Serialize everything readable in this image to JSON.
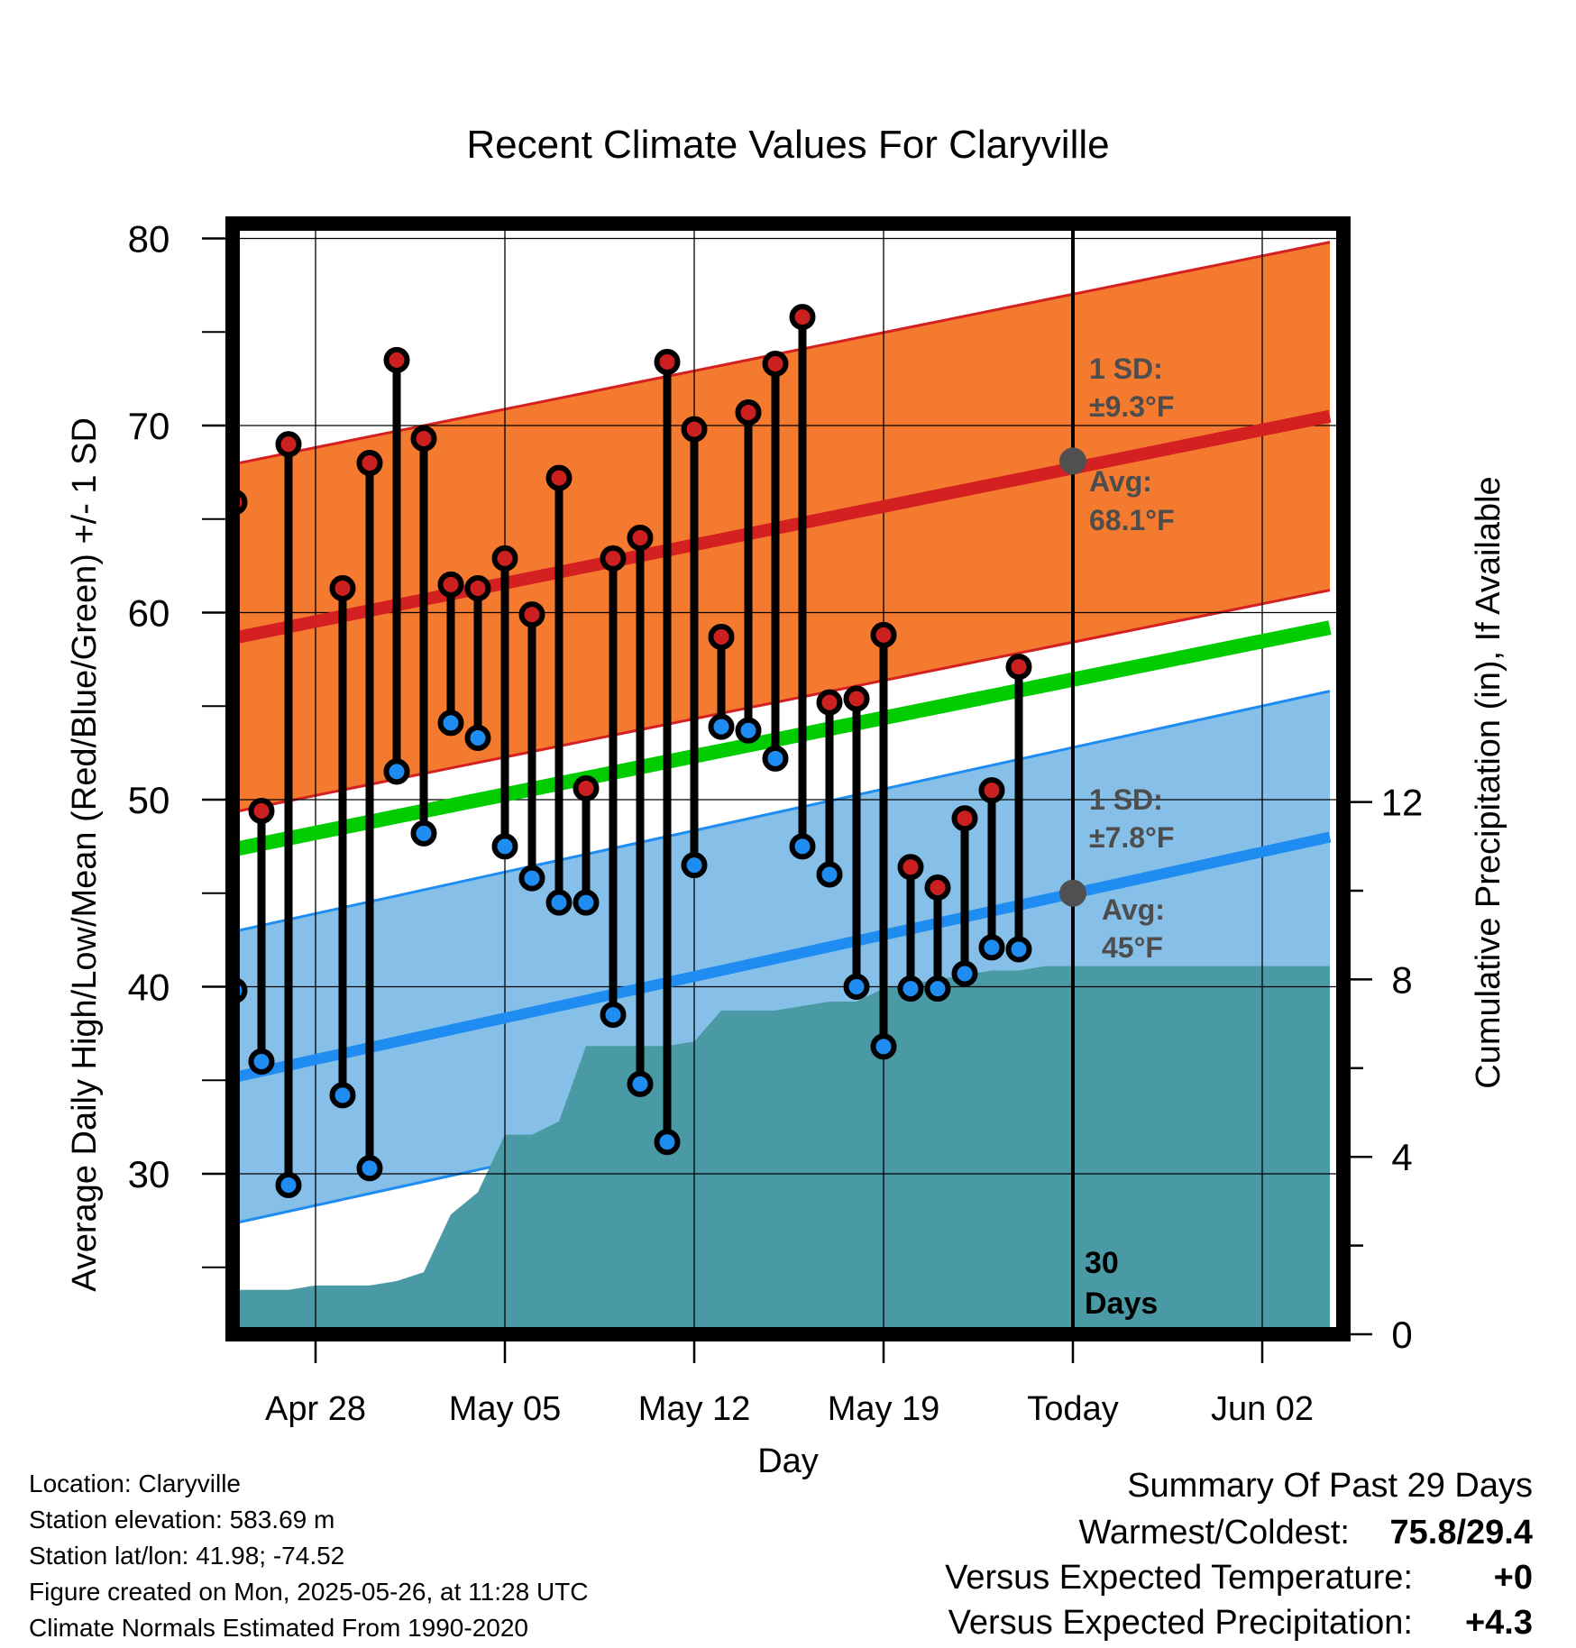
{
  "chart_data": {
    "type": "line",
    "title": "Recent Climate Values For Claryville",
    "xlabel": "Day",
    "ylabel_left": "Average Daily High/Low/Mean (Red/Blue/Green) +/- 1 SD",
    "ylabel_right": "Cumulative Precipitation (in), If Available",
    "ylim_left": [
      22,
      83
    ],
    "ylim_right": [
      0,
      30
    ],
    "xlim": [
      -2.5,
      38.5
    ],
    "y_ticks_left": [
      30,
      40,
      50,
      60,
      70,
      80
    ],
    "y_ticks_right": [
      0,
      4,
      8,
      12
    ],
    "x_ticks": [
      {
        "day": 1,
        "label": "Apr 28"
      },
      {
        "day": 8,
        "label": "May 05"
      },
      {
        "day": 15,
        "label": "May 12"
      },
      {
        "day": 22,
        "label": "May 19"
      },
      {
        "day": 29,
        "label": "Today"
      },
      {
        "day": 36,
        "label": "Jun 02"
      }
    ],
    "today_day": 29,
    "grid": true,
    "colors": {
      "high_band": "#f47a30",
      "high_line": "#d42020",
      "low_band": "#86c0e8",
      "low_line": "#1e8cf0",
      "mean_line": "#00cc00",
      "precip": "#4a9aa5",
      "high_dot": "#cc2020",
      "low_dot": "#1e8cf0",
      "marker": "#505050",
      "warm_text": "#d42020",
      "wet_text": "#00bb00"
    },
    "normal_high": {
      "start": 58.5,
      "end": 70.5,
      "sd": 9.3,
      "avg_today": 68.1
    },
    "normal_low": {
      "start": 35.0,
      "end": 48.0,
      "sd": 7.8,
      "avg_today": 45
    },
    "normal_mean": {
      "start": 47.2,
      "end": 59.2
    },
    "series": [
      {
        "name": "High",
        "days": [
          -2,
          -1,
          0,
          1,
          2,
          3,
          4,
          5,
          6,
          7,
          8,
          9,
          10,
          11,
          12,
          13,
          14,
          15,
          16,
          17,
          18,
          19,
          20,
          21,
          22,
          23,
          24,
          25,
          26,
          27,
          28
        ],
        "values": [
          65.9,
          49.4,
          69.0,
          null,
          61.3,
          68.0,
          73.5,
          69.3,
          61.5,
          61.3,
          62.9,
          59.9,
          67.2,
          50.6,
          62.9,
          64.0,
          73.4,
          69.8,
          58.7,
          70.7,
          73.3,
          75.8,
          55.2,
          55.4,
          58.8,
          46.4,
          45.3,
          49.0,
          50.5,
          57.1,
          null
        ]
      },
      {
        "name": "Low",
        "days": [
          -2,
          -1,
          0,
          1,
          2,
          3,
          4,
          5,
          6,
          7,
          8,
          9,
          10,
          11,
          12,
          13,
          14,
          15,
          16,
          17,
          18,
          19,
          20,
          21,
          22,
          23,
          24,
          25,
          26,
          27,
          28
        ],
        "values": [
          39.8,
          36.0,
          29.4,
          null,
          34.2,
          30.3,
          51.5,
          48.2,
          54.1,
          53.3,
          47.5,
          45.8,
          44.5,
          44.5,
          38.5,
          34.8,
          31.7,
          46.5,
          53.9,
          53.7,
          52.2,
          47.5,
          46.0,
          40.0,
          36.8,
          39.9,
          39.9,
          40.7,
          42.1,
          42.0,
          null
        ]
      },
      {
        "name": "Cumulative Precipitation",
        "days": [
          -2.5,
          -2,
          -1,
          0,
          1,
          2,
          3,
          4,
          5,
          6,
          7,
          8,
          9,
          10,
          11,
          12,
          13,
          14,
          15,
          16,
          17,
          18,
          19,
          20,
          21,
          22,
          23,
          24,
          25,
          26,
          27,
          28,
          29,
          38.5
        ],
        "values": [
          0.2,
          1.0,
          1.0,
          1.0,
          1.1,
          1.1,
          1.1,
          1.2,
          1.4,
          2.7,
          3.2,
          4.5,
          4.5,
          4.8,
          6.5,
          6.5,
          6.5,
          6.5,
          6.6,
          7.3,
          7.3,
          7.3,
          7.4,
          7.5,
          7.5,
          7.8,
          7.9,
          8.0,
          8.1,
          8.2,
          8.2,
          8.3,
          8.3,
          8.3
        ]
      }
    ],
    "annotations": {
      "high_sd": "1 SD:",
      "high_sd_val": "±9.3°F",
      "high_avg": "Avg:",
      "high_avg_val": "68.1°F",
      "low_sd": "1 SD:",
      "low_sd_val": "±7.8°F",
      "low_avg": "Avg:",
      "low_avg_val": "45°F",
      "days_num": "30",
      "days_word": "Days"
    }
  },
  "footer": {
    "location": "Location: Claryville",
    "elevation": "Station elevation: 583.69 m",
    "latlon": "Station lat/lon: 41.98; -74.52",
    "created": "Figure created on Mon, 2025-05-26, at 11:28 UTC",
    "normals": "Climate Normals Estimated From 1990-2020"
  },
  "summary": {
    "heading": "Summary Of Past 29 Days",
    "warm_label": "Warmest/Coldest:",
    "warm_value": "75.8/29.4",
    "temp_label": "Versus Expected Temperature:",
    "temp_value": "+0",
    "precip_label": "Versus Expected Precipitation:",
    "precip_value": "+4.3"
  }
}
